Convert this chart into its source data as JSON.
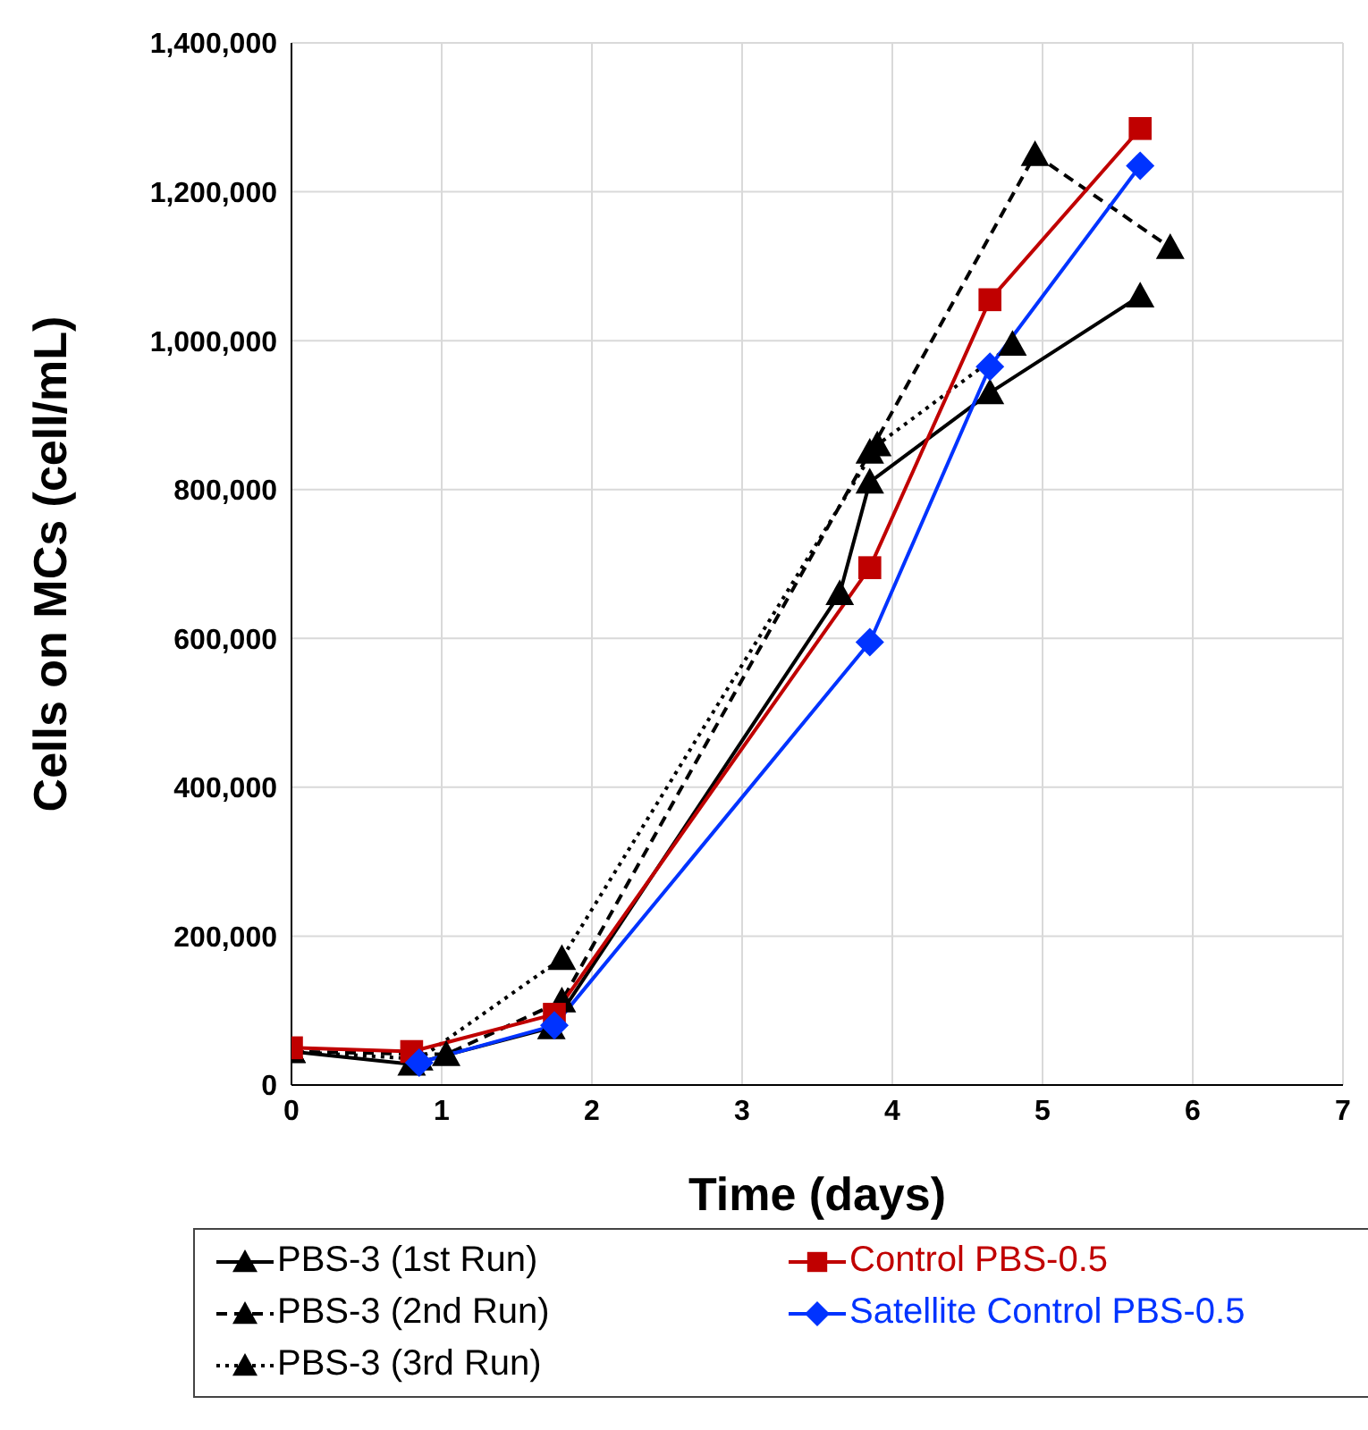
{
  "chart_data": {
    "type": "line",
    "xlabel": "Time (days)",
    "ylabel": "Cells on MCs (cell/mL)",
    "xlim": [
      0,
      7
    ],
    "xticks": [
      0,
      1,
      2,
      3,
      4,
      5,
      6,
      7
    ],
    "ylim": [
      0,
      1400000
    ],
    "yticks": [
      0,
      {
        "value": 200000,
        "label": "200,000"
      },
      {
        "value": 400000,
        "label": "400,000"
      },
      {
        "value": 600000,
        "label": "600,000"
      },
      {
        "value": 800000,
        "label": "800,000"
      },
      {
        "value": 1000000,
        "label": "1,000,000"
      },
      {
        "value": 1200000,
        "label": "1,200,000"
      },
      {
        "value": 1400000,
        "label": "1,400,000"
      }
    ],
    "grid": true,
    "legend": "bottom",
    "series": [
      {
        "name": "PBS-3 (1st Run)",
        "color": "#000000",
        "marker": "triangle",
        "line_style": "solid",
        "x": [
          0,
          0.8,
          1.73,
          3.65,
          3.85,
          4.65,
          5.65
        ],
        "values": [
          45000,
          28000,
          77000,
          660000,
          810000,
          930000,
          1060000
        ]
      },
      {
        "name": "PBS-3 (2nd Run)",
        "color": "#000000",
        "marker": "triangle",
        "line_style": "dashed",
        "x": [
          0,
          1.03,
          1.8,
          3.85,
          4.95,
          5.85
        ],
        "values": [
          45000,
          41000,
          113000,
          850000,
          1250000,
          1125000
        ]
      },
      {
        "name": "PBS-3 (3rd Run)",
        "color": "#000000",
        "marker": "triangle",
        "line_style": "dotted",
        "x": [
          0,
          0.85,
          1.8,
          3.9,
          4.8
        ],
        "values": [
          45000,
          35000,
          170000,
          860000,
          995000
        ]
      },
      {
        "name": "Control PBS-0.5",
        "color": "#c00000",
        "marker": "square",
        "line_style": "solid",
        "x": [
          0,
          0.8,
          1.75,
          3.85,
          4.65,
          5.65
        ],
        "values": [
          50000,
          45000,
          95000,
          695000,
          1055000,
          1285000
        ]
      },
      {
        "name": "Satellite Control PBS-0.5",
        "color": "#0033ff",
        "marker": "diamond",
        "line_style": "solid",
        "x": [
          0.85,
          1.75,
          3.85,
          4.65,
          5.65
        ],
        "values": [
          30000,
          80000,
          595000,
          965000,
          1235000
        ]
      }
    ]
  }
}
